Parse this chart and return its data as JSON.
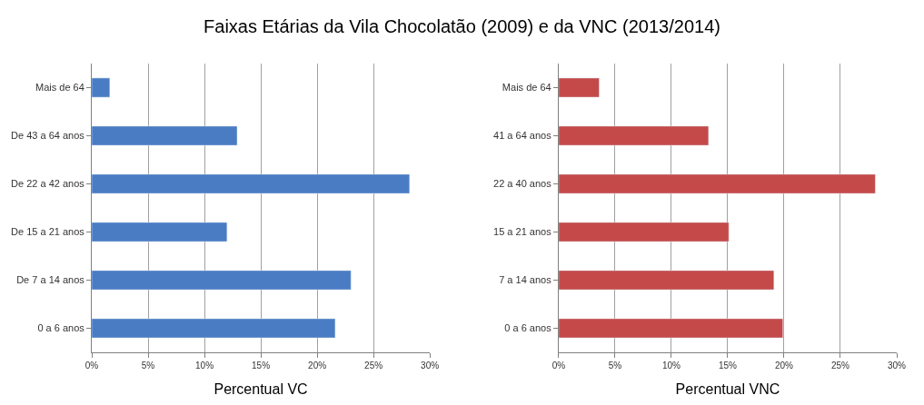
{
  "chart_data": [
    {
      "type": "bar",
      "orientation": "horizontal",
      "title": "Faixas Etárias da Vila Chocolatão (2009) e da VNC (2013/2014)",
      "xlabel": "Percentual VC",
      "categories": [
        "Mais de 64",
        "De 43 a 64 anos",
        "De 22 a 42 anos",
        "De 15 a 21 anos",
        "De 7 a 14 anos",
        "0 a 6 anos"
      ],
      "values": [
        1.6,
        12.9,
        28.2,
        12.0,
        23.0,
        21.6
      ],
      "color": "#4a7cc4",
      "xlim": [
        0,
        30
      ],
      "xticks": [
        {
          "value": 0,
          "label": "0%"
        },
        {
          "value": 5,
          "label": "5%"
        },
        {
          "value": 10,
          "label": "10%"
        },
        {
          "value": 15,
          "label": "15%"
        },
        {
          "value": 20,
          "label": "20%"
        },
        {
          "value": 25,
          "label": "25%"
        },
        {
          "value": 30,
          "label": "30%"
        }
      ],
      "grid": "x"
    },
    {
      "type": "bar",
      "orientation": "horizontal",
      "xlabel": "Percentual VNC",
      "categories": [
        "Mais de 64",
        "41 a 64 anos",
        "22 a 40 anos",
        "15 a 21 anos",
        "7 a 14 anos",
        "0 a 6 anos"
      ],
      "values": [
        3.6,
        13.3,
        28.1,
        15.1,
        19.1,
        19.9
      ],
      "color": "#c44a4a",
      "xlim": [
        0,
        30
      ],
      "xticks": [
        {
          "value": 0,
          "label": "0%"
        },
        {
          "value": 5,
          "label": "5%"
        },
        {
          "value": 10,
          "label": "10%"
        },
        {
          "value": 15,
          "label": "15%"
        },
        {
          "value": 20,
          "label": "20%"
        },
        {
          "value": 25,
          "label": "25%"
        },
        {
          "value": 30,
          "label": "30%"
        }
      ],
      "grid": "x"
    }
  ]
}
